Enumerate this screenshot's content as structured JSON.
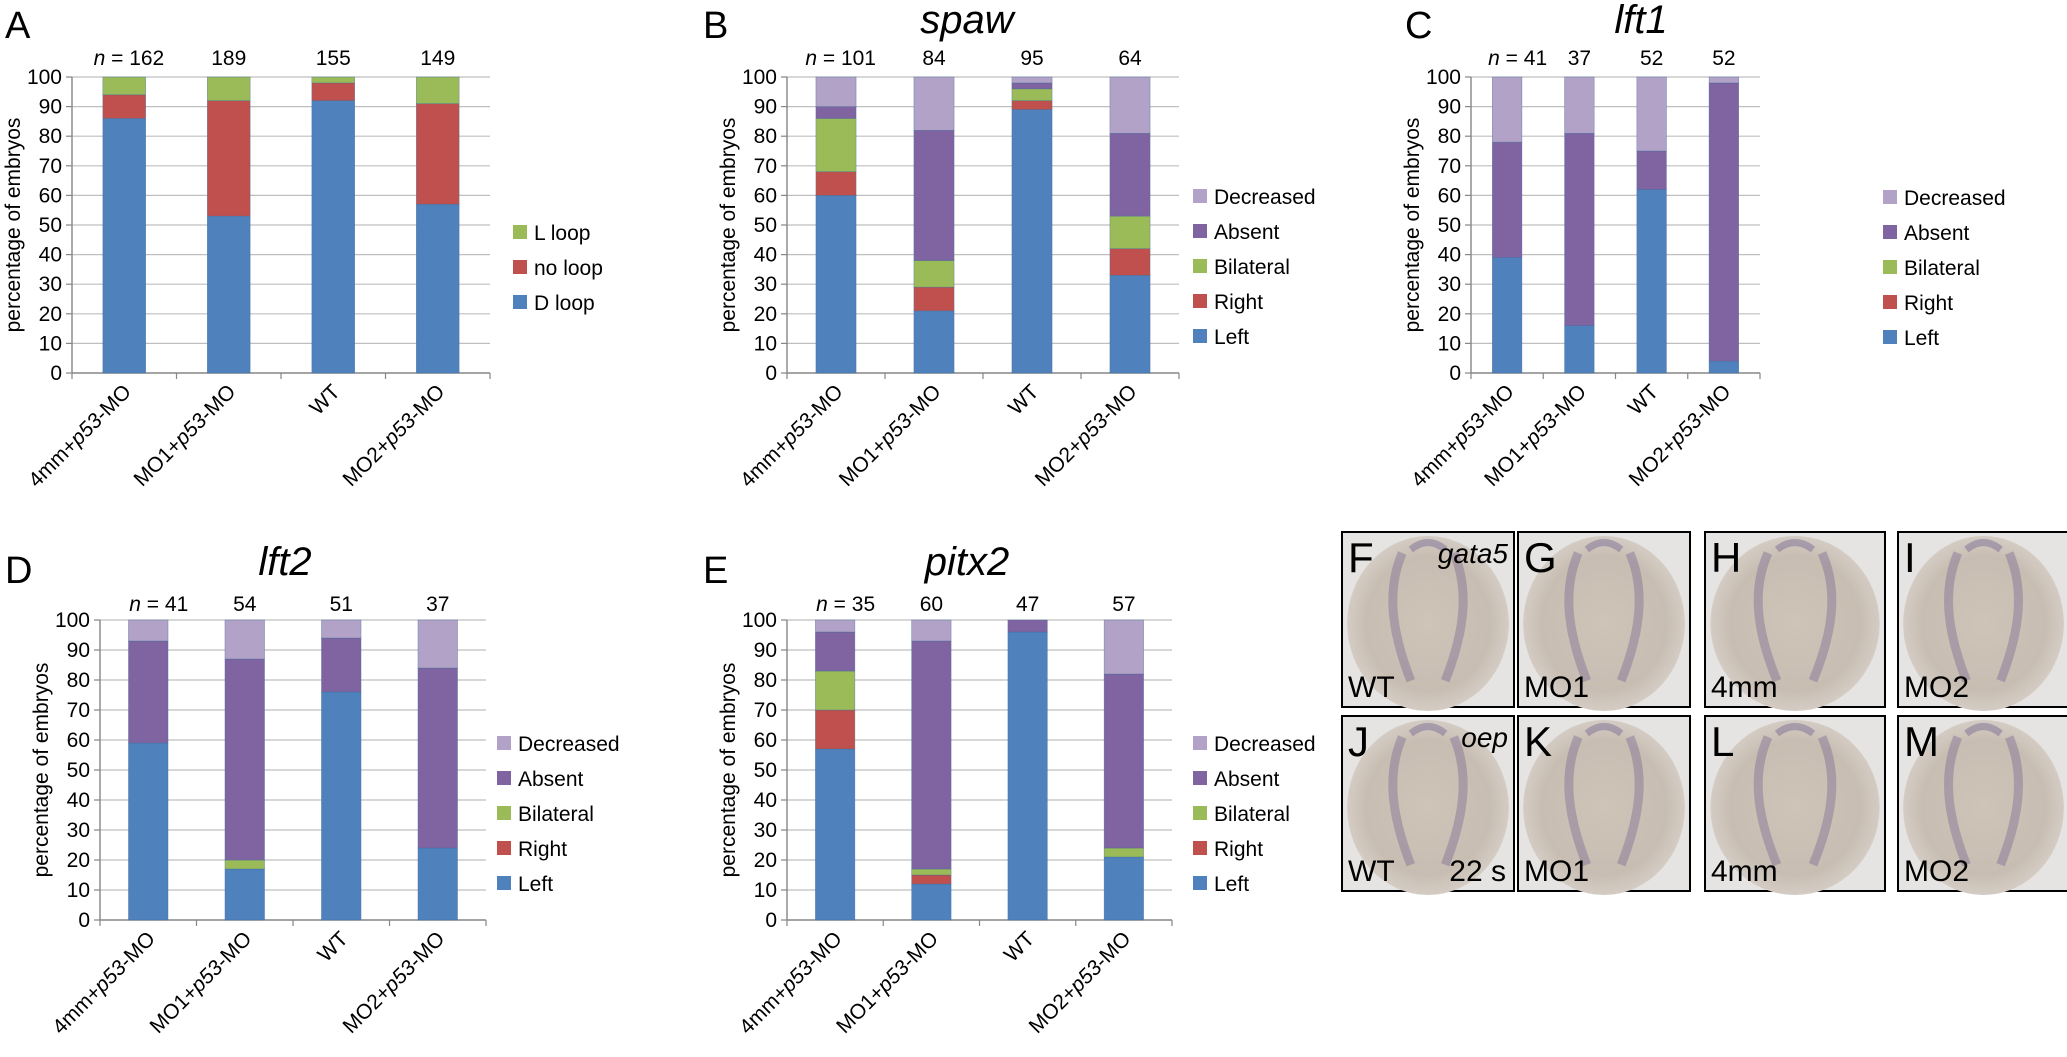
{
  "colors": {
    "left": "#4f81bd",
    "right": "#c0504d",
    "bilateral": "#9bbb59",
    "absent": "#8064a2",
    "decreased": "#b3a2c7",
    "axis": "#868686",
    "grid": "#bfbfbf"
  },
  "ylabel": "percentage of embryos",
  "n_prefix": "n",
  "chart_data": [
    {
      "panel": "A",
      "type": "bar",
      "stacked": true,
      "title": "",
      "ylabel": "percentage of embryos",
      "ylim": [
        0,
        100
      ],
      "yticks": [
        "0",
        "10",
        "20",
        "30",
        "40",
        "50",
        "60",
        "70",
        "80",
        "90",
        "100"
      ],
      "grid": true,
      "legend": "right",
      "categories": [
        {
          "pre": "4mm+",
          "it": "p53",
          "post": "-MO"
        },
        {
          "pre": "MO1+",
          "it": "p53",
          "post": "-MO"
        },
        {
          "pre": "WT",
          "it": "",
          "post": ""
        },
        {
          "pre": "MO2+",
          "it": "p53",
          "post": "-MO"
        }
      ],
      "n": [
        "162",
        "189",
        "155",
        "149"
      ],
      "series": [
        {
          "name": "D loop",
          "color": "#4f81bd",
          "values": [
            86,
            53,
            92,
            57
          ]
        },
        {
          "name": "no loop",
          "color": "#c0504d",
          "values": [
            8,
            39,
            6,
            34
          ]
        },
        {
          "name": "L loop",
          "color": "#9bbb59",
          "values": [
            6,
            8,
            2,
            9
          ]
        }
      ]
    },
    {
      "panel": "B",
      "type": "bar",
      "stacked": true,
      "title": "spaw",
      "ylabel": "percentage of embryos",
      "ylim": [
        0,
        100
      ],
      "yticks": [
        "0",
        "10",
        "20",
        "30",
        "40",
        "50",
        "60",
        "70",
        "80",
        "90",
        "100"
      ],
      "grid": true,
      "legend": "right",
      "categories": [
        {
          "pre": "4mm+",
          "it": "p53",
          "post": "-MO"
        },
        {
          "pre": "MO1+",
          "it": "p53",
          "post": "-MO"
        },
        {
          "pre": "WT",
          "it": "",
          "post": ""
        },
        {
          "pre": "MO2+",
          "it": "p53",
          "post": "-MO"
        }
      ],
      "n": [
        "101",
        "84",
        "95",
        "64"
      ],
      "series": [
        {
          "name": "Left",
          "color": "#4f81bd",
          "values": [
            60,
            21,
            89,
            33
          ]
        },
        {
          "name": "Right",
          "color": "#c0504d",
          "values": [
            8,
            8,
            3,
            9
          ]
        },
        {
          "name": "Bilateral",
          "color": "#9bbb59",
          "values": [
            18,
            9,
            4,
            11
          ]
        },
        {
          "name": "Absent",
          "color": "#8064a2",
          "values": [
            4,
            44,
            2,
            28
          ]
        },
        {
          "name": "Decreased",
          "color": "#b3a2c7",
          "values": [
            10,
            18,
            2,
            19
          ]
        }
      ]
    },
    {
      "panel": "C",
      "type": "bar",
      "stacked": true,
      "title": "lft1",
      "ylabel": "percentage of embryos",
      "ylim": [
        0,
        100
      ],
      "yticks": [
        "0",
        "10",
        "20",
        "30",
        "40",
        "50",
        "60",
        "70",
        "80",
        "90",
        "100"
      ],
      "grid": true,
      "legend": "right",
      "categories": [
        {
          "pre": "4mm+",
          "it": "p53",
          "post": "-MO"
        },
        {
          "pre": "MO1+",
          "it": "p53",
          "post": "-MO"
        },
        {
          "pre": "WT",
          "it": "",
          "post": ""
        },
        {
          "pre": "MO2+",
          "it": "p53",
          "post": "-MO"
        }
      ],
      "n": [
        "41",
        "37",
        "52",
        "52"
      ],
      "series": [
        {
          "name": "Left",
          "color": "#4f81bd",
          "values": [
            39,
            16,
            62,
            4
          ]
        },
        {
          "name": "Right",
          "color": "#c0504d",
          "values": [
            0,
            0,
            0,
            0
          ]
        },
        {
          "name": "Bilateral",
          "color": "#9bbb59",
          "values": [
            0,
            0,
            0,
            0
          ]
        },
        {
          "name": "Absent",
          "color": "#8064a2",
          "values": [
            39,
            65,
            13,
            94
          ]
        },
        {
          "name": "Decreased",
          "color": "#b3a2c7",
          "values": [
            22,
            19,
            25,
            2
          ]
        }
      ]
    },
    {
      "panel": "D",
      "type": "bar",
      "stacked": true,
      "title": "lft2",
      "ylabel": "percentage of embryos",
      "ylim": [
        0,
        100
      ],
      "yticks": [
        "0",
        "10",
        "20",
        "30",
        "40",
        "50",
        "60",
        "70",
        "80",
        "90",
        "100"
      ],
      "grid": true,
      "legend": "right",
      "categories": [
        {
          "pre": "4mm+",
          "it": "p53",
          "post": "-MO"
        },
        {
          "pre": "MO1+",
          "it": "p53",
          "post": "-MO"
        },
        {
          "pre": "WT",
          "it": "",
          "post": ""
        },
        {
          "pre": "MO2+",
          "it": "p53",
          "post": "-MO"
        }
      ],
      "n": [
        "41",
        "54",
        "51",
        "37"
      ],
      "series": [
        {
          "name": "Left",
          "color": "#4f81bd",
          "values": [
            59,
            17,
            76,
            24
          ]
        },
        {
          "name": "Right",
          "color": "#c0504d",
          "values": [
            0,
            0,
            0,
            0
          ]
        },
        {
          "name": "Bilateral",
          "color": "#9bbb59",
          "values": [
            0,
            3,
            0,
            0
          ]
        },
        {
          "name": "Absent",
          "color": "#8064a2",
          "values": [
            34,
            67,
            18,
            60
          ]
        },
        {
          "name": "Decreased",
          "color": "#b3a2c7",
          "values": [
            7,
            13,
            6,
            16
          ]
        }
      ]
    },
    {
      "panel": "E",
      "type": "bar",
      "stacked": true,
      "title": "pitx2",
      "ylabel": "percentage of embryos",
      "ylim": [
        0,
        100
      ],
      "yticks": [
        "0",
        "10",
        "20",
        "30",
        "40",
        "50",
        "60",
        "70",
        "80",
        "90",
        "100"
      ],
      "grid": true,
      "legend": "right",
      "categories": [
        {
          "pre": "4mm+",
          "it": "p53",
          "post": "-MO"
        },
        {
          "pre": "MO1+",
          "it": "p53",
          "post": "-MO"
        },
        {
          "pre": "WT",
          "it": "",
          "post": ""
        },
        {
          "pre": "MO2+",
          "it": "p53",
          "post": "-MO"
        }
      ],
      "n": [
        "35",
        "60",
        "47",
        "57"
      ],
      "series": [
        {
          "name": "Left",
          "color": "#4f81bd",
          "values": [
            57,
            12,
            96,
            21
          ]
        },
        {
          "name": "Right",
          "color": "#c0504d",
          "values": [
            13,
            3,
            0,
            0
          ]
        },
        {
          "name": "Bilateral",
          "color": "#9bbb59",
          "values": [
            13,
            2,
            0,
            3
          ]
        },
        {
          "name": "Absent",
          "color": "#8064a2",
          "values": [
            13,
            76,
            4,
            58
          ]
        },
        {
          "name": "Decreased",
          "color": "#b3a2c7",
          "values": [
            4,
            7,
            0,
            18
          ]
        }
      ]
    }
  ],
  "photos": [
    {
      "letter": "F",
      "label": "WT",
      "gene": "gata5",
      "extra": ""
    },
    {
      "letter": "G",
      "label": "MO1",
      "gene": "",
      "extra": ""
    },
    {
      "letter": "H",
      "label": "4mm",
      "gene": "",
      "extra": ""
    },
    {
      "letter": "I",
      "label": "MO2",
      "gene": "",
      "extra": ""
    },
    {
      "letter": "J",
      "label": "WT",
      "gene": "oep",
      "extra": "22 s"
    },
    {
      "letter": "K",
      "label": "MO1",
      "gene": "",
      "extra": ""
    },
    {
      "letter": "L",
      "label": "4mm",
      "gene": "",
      "extra": ""
    },
    {
      "letter": "M",
      "label": "MO2",
      "gene": "",
      "extra": ""
    }
  ]
}
